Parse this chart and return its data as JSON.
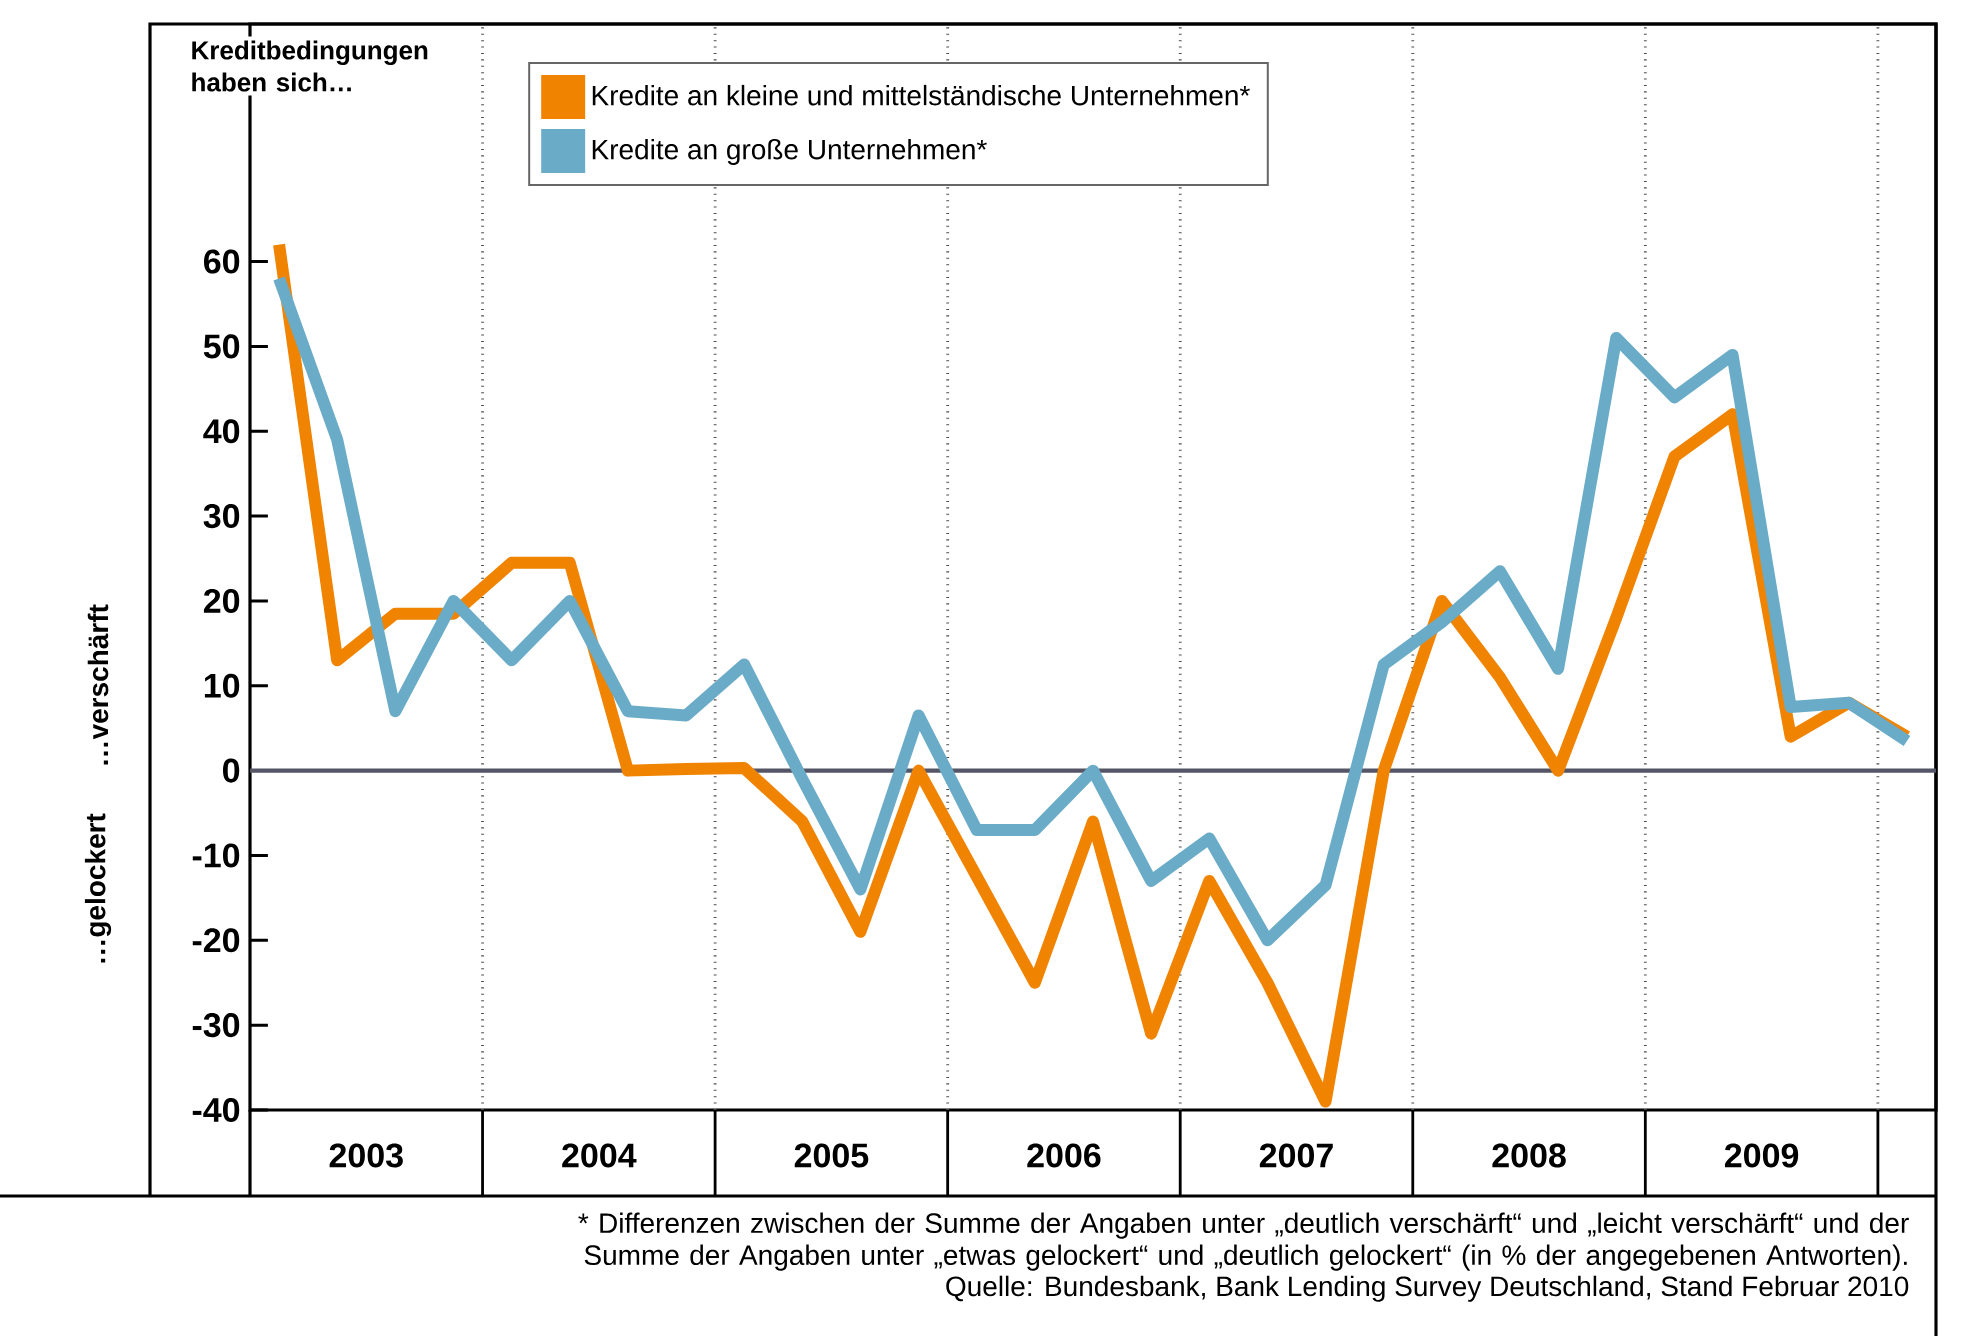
{
  "chart_data": {
    "type": "line",
    "ylabel": "Kreditbedingungen haben sich…",
    "x": [
      2003.125,
      2003.375,
      2003.625,
      2003.875,
      2004.125,
      2004.375,
      2004.625,
      2004.875,
      2005.125,
      2005.375,
      2005.625,
      2005.875,
      2006.125,
      2006.375,
      2006.625,
      2006.875,
      2007.125,
      2007.375,
      2007.625,
      2007.875,
      2008.125,
      2008.375,
      2008.625,
      2008.875,
      2009.125,
      2009.375,
      2009.625,
      2009.875,
      2010.125
    ],
    "series": [
      {
        "name": "Kredite an kleine und mittelständische Unternehmen*",
        "color": "#f08300",
        "values": [
          62,
          13,
          18.5,
          18.5,
          24.5,
          24.5,
          0,
          0.2,
          0.3,
          -6,
          -19,
          0,
          -12.5,
          -25,
          -6,
          -31,
          -13,
          -25,
          -39,
          0,
          20,
          11,
          0,
          18,
          37,
          42,
          4,
          8,
          4
        ]
      },
      {
        "name": "Kredite an große Unternehmen*",
        "color": "#6aacc7",
        "values": [
          58,
          39,
          7,
          20,
          13,
          20,
          7,
          6.5,
          12.5,
          -1,
          -14,
          6.5,
          -7,
          -7,
          0,
          -13,
          -8,
          -20,
          -13.5,
          12.5,
          17.5,
          23.5,
          12,
          51,
          44,
          49,
          7.5,
          8,
          3.5
        ]
      }
    ],
    "xlim": [
      2003,
      2010.25
    ],
    "xticks": [
      {
        "value": 2003.5,
        "label": "2003"
      },
      {
        "value": 2004.5,
        "label": "2004"
      },
      {
        "value": 2005.5,
        "label": "2005"
      },
      {
        "value": 2006.5,
        "label": "2006"
      },
      {
        "value": 2007.5,
        "label": "2007"
      },
      {
        "value": 2008.5,
        "label": "2008"
      },
      {
        "value": 2009.5,
        "label": "2009"
      },
      {
        "value": 2004,
        "label": null
      },
      {
        "value": 2005,
        "label": null
      },
      {
        "value": 2006,
        "label": null
      },
      {
        "value": 2007,
        "label": null
      },
      {
        "value": 2008,
        "label": null
      },
      {
        "value": 2009,
        "label": null
      },
      {
        "value": 2010,
        "label": null
      }
    ],
    "ylim": [
      -40,
      88
    ],
    "yticks": [
      -40,
      -30,
      -20,
      -10,
      0,
      10,
      20,
      30,
      40,
      50,
      60
    ],
    "grid": "x",
    "legend": "top left",
    "ref_lines": [
      {
        "axis": "y",
        "value": 0,
        "color": "#555566"
      }
    ],
    "annotations": [
      "…verschärft",
      "…gelockert",
      "* Differenzen zwischen der Summe der Angaben unter „deutlich verschärft“ und „leicht verschärft“ und der Summe der Angaben unter „etwas gelockert“ und „deutlich gelockert“ (in % der angegebenen Antworten).",
      "Quelle: Bundesbank, Bank Lending Survey Deutschland, Stand Februar 2010"
    ]
  }
}
